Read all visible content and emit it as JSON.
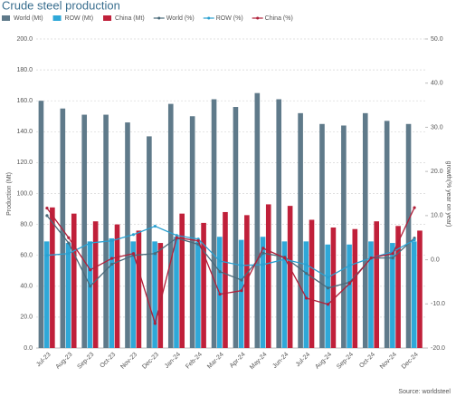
{
  "chart_data": {
    "type": "bar",
    "title": "Crude steel production",
    "source": "Source: worldsteel",
    "y_label": "Production (Mt)",
    "y2_label": "growth(% year on year)",
    "categories": [
      "Jul-23",
      "Aug-23",
      "Sep-23",
      "Oct-23",
      "Nov-23",
      "Dec-23",
      "Jan-24",
      "Feb-24",
      "Mar-24",
      "Apr-24",
      "May-24",
      "Jun-24",
      "Jul-24",
      "Aug-24",
      "Sep-24",
      "Oct-24",
      "Nov-24",
      "Dec-24"
    ],
    "ylim": [
      0,
      200
    ],
    "yticks": [
      {
        "value": 0,
        "label": "0.0"
      },
      {
        "value": 20,
        "label": "20.0"
      },
      {
        "value": 40,
        "label": "40.0"
      },
      {
        "value": 60,
        "label": "60.0"
      },
      {
        "value": 80,
        "label": "80.0"
      },
      {
        "value": 100,
        "label": "100.0"
      },
      {
        "value": 120,
        "label": "120.0"
      },
      {
        "value": 140,
        "label": "140.0"
      },
      {
        "value": 160,
        "label": "160.0"
      },
      {
        "value": 180,
        "label": "180.0"
      },
      {
        "value": 200,
        "label": "200.0"
      }
    ],
    "y2lim": [
      -20,
      50
    ],
    "y2ticks": [
      {
        "value": -20,
        "label": "-20.0"
      },
      {
        "value": -10,
        "label": "-10.0"
      },
      {
        "value": 0,
        "label": "0.0"
      },
      {
        "value": 10,
        "label": "10.0"
      },
      {
        "value": 20,
        "label": "20.0"
      },
      {
        "value": 30,
        "label": "30.0"
      },
      {
        "value": 40,
        "label": "40.0"
      },
      {
        "value": 50,
        "label": "50.0"
      }
    ],
    "grid": true,
    "series": [
      {
        "name": "World (Mt)",
        "type": "bar",
        "color": "#5f7a8a",
        "values": [
          160,
          155,
          151,
          151,
          146,
          137,
          158,
          150,
          161,
          156,
          165,
          161,
          152,
          145,
          144,
          152,
          147,
          145
        ]
      },
      {
        "name": "ROW (Mt)",
        "type": "bar",
        "color": "#2fa8d8",
        "values": [
          69,
          68,
          69,
          71,
          69,
          69,
          72,
          69,
          72,
          70,
          72,
          69,
          69,
          67,
          67,
          69,
          68,
          69
        ]
      },
      {
        "name": "China (Mt)",
        "type": "bar",
        "color": "#c0203a",
        "values": [
          91,
          87,
          82,
          80,
          76,
          68,
          87,
          81,
          88,
          86,
          93,
          92,
          83,
          78,
          77,
          82,
          79,
          76
        ]
      },
      {
        "name": "World (%)",
        "type": "line",
        "axis": "y2",
        "color": "#4a6a7a",
        "values": [
          10,
          3.8,
          -6,
          -1,
          1,
          1.4,
          4.9,
          3.5,
          -2.7,
          -4.6,
          1.5,
          0.6,
          -3.1,
          -6.4,
          -5.1,
          0.4,
          0.4,
          4.9
        ]
      },
      {
        "name": "ROW (%)",
        "type": "line",
        "axis": "y2",
        "color": "#2aa0d0",
        "values": [
          1,
          1.4,
          3.8,
          4.3,
          5.7,
          7.6,
          5.5,
          4.7,
          -0.3,
          -1.3,
          -1.1,
          0.1,
          -1.1,
          -4,
          -1.3,
          0.4,
          1.8,
          4.5
        ]
      },
      {
        "name": "China (%)",
        "type": "line",
        "axis": "y2",
        "color": "#b0203a",
        "values": [
          11.7,
          5,
          -2.3,
          0.3,
          1.4,
          -14.4,
          5,
          4.3,
          -7.8,
          -7,
          2.6,
          0.4,
          -8.7,
          -10.1,
          -5.4,
          0.4,
          1.4,
          11.8
        ]
      }
    ]
  }
}
